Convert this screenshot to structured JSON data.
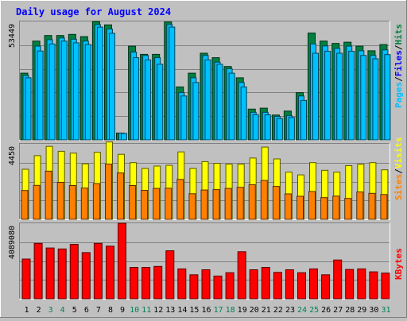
{
  "chart_data": [
    {
      "type": "bar",
      "panel": "hits-files-pages",
      "title": "Daily usage for August 2024",
      "categories": [
        "1",
        "2",
        "3",
        "4",
        "5",
        "6",
        "7",
        "8",
        "9",
        "10",
        "11",
        "12",
        "13",
        "14",
        "15",
        "16",
        "17",
        "18",
        "19",
        "20",
        "21",
        "22",
        "23",
        "24",
        "25",
        "26",
        "27",
        "28",
        "29",
        "30",
        "31"
      ],
      "weekend_days": [
        "3",
        "4",
        "10",
        "11",
        "17",
        "18",
        "24",
        "25",
        "31"
      ],
      "ylim": [
        0,
        53449
      ],
      "ytick_label": "53449",
      "legend": [
        "Pages",
        "/",
        "Files",
        "/",
        "Hits"
      ],
      "series": [
        {
          "name": "Hits",
          "color": "#008040",
          "values": [
            30100,
            44600,
            47100,
            47100,
            47600,
            46600,
            53400,
            51900,
            3100,
            42300,
            38600,
            38600,
            53200,
            23900,
            30100,
            39100,
            37100,
            33100,
            28000,
            13900,
            14300,
            11200,
            13000,
            21300,
            48200,
            44600,
            43500,
            44100,
            42300,
            40200,
            43000
          ]
        },
        {
          "name": "Files",
          "color": "#00c0ff",
          "values": [
            29000,
            42300,
            45200,
            46000,
            45400,
            44600,
            52000,
            50000,
            3000,
            39600,
            38100,
            37100,
            52000,
            21300,
            28000,
            38100,
            35100,
            32100,
            25900,
            12400,
            12400,
            10600,
            10900,
            19800,
            43300,
            42400,
            41300,
            42300,
            40200,
            38100,
            40600
          ]
        },
        {
          "name": "Pages",
          "color": "#00c0ff",
          "values": [
            28000,
            40100,
            43300,
            44600,
            43800,
            43000,
            50900,
            48100,
            2900,
            37100,
            36100,
            34100,
            50900,
            19800,
            25900,
            36100,
            34100,
            30100,
            23900,
            11400,
            11300,
            9600,
            10100,
            17800,
            39100,
            40000,
            39100,
            40000,
            38100,
            36600,
            38500
          ]
        }
      ]
    },
    {
      "type": "bar",
      "panel": "visits-sites",
      "categories": [
        "1",
        "2",
        "3",
        "4",
        "5",
        "6",
        "7",
        "8",
        "9",
        "10",
        "11",
        "12",
        "13",
        "14",
        "15",
        "16",
        "17",
        "18",
        "19",
        "20",
        "21",
        "22",
        "23",
        "24",
        "25",
        "26",
        "27",
        "28",
        "29",
        "30",
        "31"
      ],
      "ylim": [
        0,
        4450
      ],
      "ytick_label": "4450",
      "legend": [
        "Sites",
        "/",
        "Visits"
      ],
      "series": [
        {
          "name": "Visits",
          "color": "#ffff00",
          "values": [
            2950,
            3750,
            4300,
            4010,
            3900,
            3270,
            3950,
            4560,
            3830,
            3340,
            3000,
            3140,
            3180,
            3970,
            3000,
            3400,
            3300,
            3250,
            3250,
            3610,
            4260,
            3560,
            2780,
            2620,
            3340,
            2890,
            2780,
            3160,
            3240,
            3340,
            2920
          ]
        },
        {
          "name": "Sites",
          "color": "#ff8000",
          "values": [
            1700,
            2000,
            2840,
            2180,
            1990,
            1840,
            2110,
            3260,
            2730,
            1990,
            1710,
            1820,
            1830,
            2350,
            1510,
            1730,
            1750,
            1820,
            1890,
            2040,
            2290,
            1940,
            1500,
            1360,
            1640,
            1280,
            1370,
            1230,
            1610,
            1530,
            1460
          ]
        }
      ]
    },
    {
      "type": "bar",
      "panel": "kbytes",
      "categories": [
        "1",
        "2",
        "3",
        "4",
        "5",
        "6",
        "7",
        "8",
        "9",
        "10",
        "11",
        "12",
        "13",
        "14",
        "15",
        "16",
        "17",
        "18",
        "19",
        "20",
        "21",
        "22",
        "23",
        "24",
        "25",
        "26",
        "27",
        "28",
        "29",
        "30",
        "31"
      ],
      "ylim": [
        0,
        4089080
      ],
      "ytick_label": "4089080",
      "legend": [
        "KBytes"
      ],
      "series": [
        {
          "name": "KBytes",
          "color": "#ff0000",
          "values": [
            2150000,
            3000000,
            2750000,
            2700000,
            2950000,
            2500000,
            3000000,
            2850000,
            4089080,
            1700000,
            1700000,
            1750000,
            2600000,
            1620000,
            1300000,
            1570000,
            1230000,
            1410000,
            2550000,
            1570000,
            1700000,
            1430000,
            1570000,
            1410000,
            1620000,
            1300000,
            2100000,
            1590000,
            1620000,
            1460000,
            1390000
          ]
        }
      ]
    }
  ]
}
